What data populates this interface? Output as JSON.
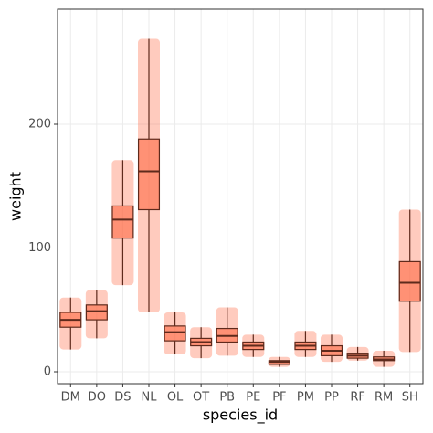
{
  "chart_data": {
    "type": "box",
    "x_label": "species_id",
    "y_label": "weight",
    "categories": [
      "DM",
      "DO",
      "DS",
      "NL",
      "OL",
      "OT",
      "PB",
      "PE",
      "PF",
      "PM",
      "PP",
      "RF",
      "RM",
      "SH"
    ],
    "boxes": [
      {
        "whislo": 18,
        "q1": 36,
        "med": 42,
        "q3": 48,
        "whishi": 60
      },
      {
        "whislo": 27,
        "q1": 42,
        "med": 49,
        "q3": 54,
        "whishi": 66
      },
      {
        "whislo": 70,
        "q1": 108,
        "med": 123,
        "q3": 134,
        "whishi": 171
      },
      {
        "whislo": 48,
        "q1": 131,
        "med": 162,
        "q3": 188,
        "whishi": 269
      },
      {
        "whislo": 14,
        "q1": 25,
        "med": 32,
        "q3": 37,
        "whishi": 48
      },
      {
        "whislo": 11,
        "q1": 21,
        "med": 24,
        "q3": 27,
        "whishi": 36
      },
      {
        "whislo": 13,
        "q1": 24,
        "med": 29,
        "q3": 35,
        "whishi": 52
      },
      {
        "whislo": 12,
        "q1": 18,
        "med": 21,
        "q3": 24,
        "whishi": 30
      },
      {
        "whislo": 4,
        "q1": 6,
        "med": 8,
        "q3": 9,
        "whishi": 12
      },
      {
        "whislo": 12,
        "q1": 18,
        "med": 21,
        "q3": 24,
        "whishi": 33
      },
      {
        "whislo": 8,
        "q1": 13,
        "med": 17,
        "q3": 21,
        "whishi": 30
      },
      {
        "whislo": 9,
        "q1": 11,
        "med": 13,
        "q3": 15,
        "whishi": 20
      },
      {
        "whislo": 4,
        "q1": 9,
        "med": 10,
        "q3": 12,
        "whishi": 17
      },
      {
        "whislo": 16,
        "q1": 57,
        "med": 72,
        "q3": 89,
        "whishi": 131
      }
    ],
    "ylim": [
      -9.6,
      293
    ],
    "yticks": [
      0,
      100,
      200
    ],
    "grid": true,
    "point_color": "#ff6a45",
    "box_color": "#5e2a1c"
  }
}
